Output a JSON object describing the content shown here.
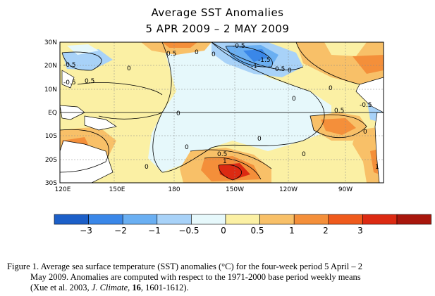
{
  "header": {
    "title": "Average SST Anomalies",
    "subtitle": "5 APR 2009 – 2 MAY 2009"
  },
  "map": {
    "lat_labels": [
      "30N",
      "20N",
      "10N",
      "EQ",
      "10S",
      "20S",
      "30S"
    ],
    "lon_labels": [
      "120E",
      "150E",
      "180",
      "150W",
      "120W",
      "90W"
    ],
    "contour_labels": [
      {
        "text": "-0.5",
        "id": "a"
      },
      {
        "text": "0.5",
        "id": "b"
      },
      {
        "text": "0",
        "id": "c"
      },
      {
        "text": "-0.5",
        "id": "d"
      },
      {
        "text": "0",
        "id": "e"
      },
      {
        "text": "-1.5",
        "id": "f"
      },
      {
        "text": "-1",
        "id": "g"
      },
      {
        "text": "0.5",
        "id": "h"
      },
      {
        "text": "0",
        "id": "i"
      },
      {
        "text": "0.5",
        "id": "j"
      },
      {
        "text": "0",
        "id": "k"
      },
      {
        "text": "0.5",
        "id": "l"
      },
      {
        "text": "-0.5",
        "id": "m"
      },
      {
        "text": "0",
        "id": "n"
      },
      {
        "text": "0",
        "id": "o"
      },
      {
        "text": "0",
        "id": "p"
      },
      {
        "text": "0",
        "id": "q"
      },
      {
        "text": "0.5",
        "id": "r"
      },
      {
        "text": "1",
        "id": "s"
      },
      {
        "text": "0",
        "id": "t"
      },
      {
        "text": "0",
        "id": "u"
      },
      {
        "text": "0",
        "id": "v"
      },
      {
        "text": "0.5",
        "id": "w"
      },
      {
        "text": "1",
        "id": "x"
      },
      {
        "text": "-0.5",
        "id": "y"
      },
      {
        "text": "0",
        "id": "z"
      }
    ]
  },
  "colorbar": {
    "ticks": [
      "−3",
      "−2",
      "−1",
      "−0.5",
      "0",
      "0.5",
      "1",
      "2",
      "3"
    ],
    "colors": [
      "#1c5fc8",
      "#3a87e8",
      "#6aaff2",
      "#a8d2f8",
      "#e6f8fb",
      "#fbf0a4",
      "#f8c068",
      "#f48f3a",
      "#ef5a1c",
      "#dc2a12",
      "#a8160c"
    ]
  },
  "caption": {
    "line1": "Figure 1. Average sea surface temperature (SST) anomalies (°C) for the four-week period 5 April – 2",
    "line2": "May 2009.   Anomalies are computed with respect to the 1971-2000 base period weekly means",
    "line3_pre": "(Xue et al. 2003, ",
    "line3_journal": "J. Climate",
    "line3_mid": ", ",
    "line3_vol": "16",
    "line3_post": ", 1601-1612)."
  }
}
